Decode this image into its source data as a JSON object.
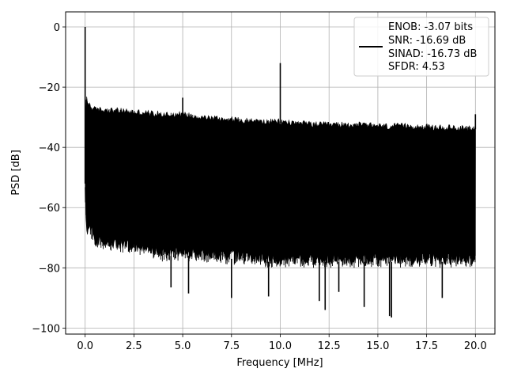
{
  "chart_data": {
    "type": "line",
    "title": "",
    "xlabel": "Frequency [MHz]",
    "ylabel": "PSD [dB]",
    "xlim": [
      -1.0,
      21.0
    ],
    "ylim": [
      -102.0,
      5.0
    ],
    "xticks": [
      0.0,
      2.5,
      5.0,
      7.5,
      10.0,
      12.5,
      15.0,
      17.5,
      20.0
    ],
    "xtick_labels": [
      "0.0",
      "2.5",
      "5.0",
      "7.5",
      "10.0",
      "12.5",
      "15.0",
      "17.5",
      "20.0"
    ],
    "yticks": [
      0,
      -20,
      -40,
      -60,
      -80,
      -100
    ],
    "ytick_labels": [
      "0",
      "−20",
      "−40",
      "−60",
      "−80",
      "−100"
    ],
    "grid": true,
    "legend_position": "top-right",
    "legend_lines": [
      "ENOB: -3.07 bits",
      "SNR: -16.69 dB",
      "SINAD: -16.73 dB",
      "SFDR: 4.53"
    ],
    "series": [
      {
        "color": "#000000",
        "envelope": {
          "x": [
            0.0,
            0.05,
            0.1,
            0.3,
            0.5,
            1.0,
            2.0,
            3.0,
            4.0,
            5.0,
            6.0,
            7.0,
            8.0,
            9.0,
            10.0,
            11.0,
            12.0,
            13.0,
            14.0,
            15.0,
            16.0,
            17.0,
            18.0,
            19.0,
            20.0
          ],
          "upper": [
            -52,
            -22,
            -25,
            -27,
            -28,
            -28,
            -28.5,
            -29,
            -29.5,
            -29.5,
            -30.5,
            -31,
            -31.5,
            -32,
            -32,
            -32.5,
            -33,
            -33,
            -33,
            -33.5,
            -33.5,
            -33.5,
            -34,
            -34,
            -34
          ],
          "lower": [
            -52,
            -68,
            -68,
            -68,
            -72,
            -72,
            -73,
            -74,
            -76,
            -76,
            -76,
            -77,
            -77,
            -78,
            -78,
            -78,
            -78,
            -78,
            -78,
            -78,
            -78,
            -78,
            -78,
            -78,
            -78
          ]
        },
        "peaks": [
          {
            "x": 0.0,
            "y": 0.0
          },
          {
            "x": 5.0,
            "y": -23.5
          },
          {
            "x": 10.0,
            "y": -12.0
          },
          {
            "x": 20.0,
            "y": -29.0
          }
        ],
        "dips": [
          {
            "x": 4.4,
            "y": -86.5
          },
          {
            "x": 5.3,
            "y": -88.5
          },
          {
            "x": 7.5,
            "y": -90.0
          },
          {
            "x": 9.4,
            "y": -89.5
          },
          {
            "x": 12.0,
            "y": -91.0
          },
          {
            "x": 12.3,
            "y": -94.0
          },
          {
            "x": 13.0,
            "y": -88.0
          },
          {
            "x": 14.3,
            "y": -93.0
          },
          {
            "x": 15.6,
            "y": -96.0
          },
          {
            "x": 15.7,
            "y": -96.5
          },
          {
            "x": 18.3,
            "y": -90.0
          }
        ]
      }
    ]
  }
}
